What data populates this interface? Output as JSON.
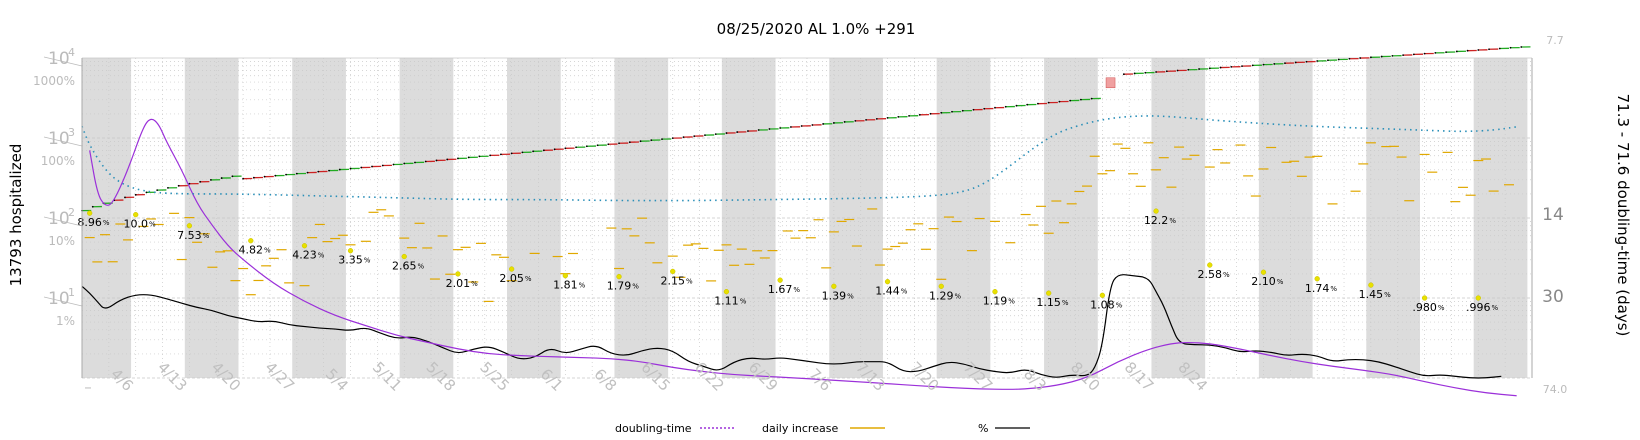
{
  "chart_data": {
    "type": "line",
    "title": "08/25/2020 AL 1.0% +291",
    "ylabel_left": "13793 hospitalized",
    "ylabel_right": "71.3 - 71.6 doubling-time (days)",
    "yscale_left": "log",
    "yticks_left": [
      "10",
      "10",
      "10",
      "10"
    ],
    "yticks_left_exp": [
      "1",
      "2",
      "3",
      "4"
    ],
    "pct_ticks": [
      "1%",
      "10%",
      "100%",
      "1000%"
    ],
    "yticks_right": [
      "7.7",
      "14",
      "30",
      "74.0"
    ],
    "x_ticks": [
      "4/6",
      "4/13",
      "4/20",
      "4/27",
      "5/4",
      "5/11",
      "5/18",
      "5/25",
      "6/1",
      "6/8",
      "6/15",
      "6/22",
      "6/29",
      "7/6",
      "7/13",
      "7/20",
      "7/27",
      "8/3",
      "8/10",
      "8/17",
      "8/24"
    ],
    "x_start_tick": "–",
    "grid": true,
    "legend_position": "bottom",
    "legend": [
      {
        "label": "doubling-time",
        "style": "dotted",
        "color": "#9b30d9"
      },
      {
        "label": "daily increase",
        "style": "solid",
        "color": "#e0a800"
      },
      {
        "label": "%",
        "style": "solid",
        "color": "#000000"
      }
    ],
    "pct_annotations": [
      {
        "day": 1,
        "text": "8.96",
        "pct": 11.5
      },
      {
        "day": 7,
        "text": "10.0",
        "pct": 11.0
      },
      {
        "day": 14,
        "text": "7.53",
        "pct": 8.0
      },
      {
        "day": 22,
        "text": "4.82",
        "pct": 5.2
      },
      {
        "day": 29,
        "text": "4.23",
        "pct": 4.5
      },
      {
        "day": 35,
        "text": "3.35",
        "pct": 3.9
      },
      {
        "day": 42,
        "text": "2.65",
        "pct": 3.3
      },
      {
        "day": 49,
        "text": "2.01",
        "pct": 2.0
      },
      {
        "day": 56,
        "text": "2.05",
        "pct": 2.3
      },
      {
        "day": 63,
        "text": "1.81",
        "pct": 1.9
      },
      {
        "day": 70,
        "text": "1.79",
        "pct": 1.85
      },
      {
        "day": 77,
        "text": "2.15",
        "pct": 2.15
      },
      {
        "day": 84,
        "text": "1.11",
        "pct": 1.2
      },
      {
        "day": 91,
        "text": "1.67",
        "pct": 1.67
      },
      {
        "day": 98,
        "text": "1.39",
        "pct": 1.4
      },
      {
        "day": 105,
        "text": "1.44",
        "pct": 1.6
      },
      {
        "day": 112,
        "text": "1.29",
        "pct": 1.4
      },
      {
        "day": 119,
        "text": "1.19",
        "pct": 1.2
      },
      {
        "day": 126,
        "text": "1.15",
        "pct": 1.15
      },
      {
        "day": 133,
        "text": "1.08",
        "pct": 1.08
      },
      {
        "day": 140,
        "text": "12.2",
        "pct": 12.2
      },
      {
        "day": 147,
        "text": "2.58",
        "pct": 2.58
      },
      {
        "day": 154,
        "text": "2.10",
        "pct": 2.1
      },
      {
        "day": 161,
        "text": "1.74",
        "pct": 1.74
      },
      {
        "day": 168,
        "text": "1.45",
        "pct": 1.45
      },
      {
        "day": 175,
        "text": ".980",
        "pct": 1.0
      },
      {
        "day": 182,
        "text": ".996",
        "pct": 1.0
      }
    ],
    "series": [
      {
        "name": "%",
        "color": "#000000",
        "points": [
          [
            0,
            14
          ],
          [
            1,
            11.5
          ],
          [
            2,
            9
          ],
          [
            3,
            7
          ],
          [
            5,
            9.5
          ],
          [
            7,
            11
          ],
          [
            9,
            11
          ],
          [
            11,
            9.8
          ],
          [
            13,
            8.6
          ],
          [
            15,
            7.6
          ],
          [
            17,
            7
          ],
          [
            19,
            6
          ],
          [
            21,
            5.5
          ],
          [
            23,
            5
          ],
          [
            25,
            5.2
          ],
          [
            27,
            4.6
          ],
          [
            29,
            4.4
          ],
          [
            31,
            4.2
          ],
          [
            33,
            4.1
          ],
          [
            35,
            3.9
          ],
          [
            37,
            4.3
          ],
          [
            39,
            3.6
          ],
          [
            41,
            3.1
          ],
          [
            43,
            3.3
          ],
          [
            45,
            2.9
          ],
          [
            47,
            2.4
          ],
          [
            49,
            2.0
          ],
          [
            51,
            2.3
          ],
          [
            53,
            2.5
          ],
          [
            55,
            2.1
          ],
          [
            57,
            1.7
          ],
          [
            59,
            1.8
          ],
          [
            61,
            2.4
          ],
          [
            63,
            2.0
          ],
          [
            65,
            2.3
          ],
          [
            67,
            2.6
          ],
          [
            69,
            2.0
          ],
          [
            71,
            1.9
          ],
          [
            73,
            2.2
          ],
          [
            75,
            2.4
          ],
          [
            77,
            2.2
          ],
          [
            79,
            1.6
          ],
          [
            81,
            1.4
          ],
          [
            83,
            1.2
          ],
          [
            85,
            1.6
          ],
          [
            87,
            1.8
          ],
          [
            89,
            1.7
          ],
          [
            91,
            1.8
          ],
          [
            93,
            1.7
          ],
          [
            95,
            1.6
          ],
          [
            97,
            1.5
          ],
          [
            99,
            1.5
          ],
          [
            101,
            1.6
          ],
          [
            103,
            1.6
          ],
          [
            105,
            1.6
          ],
          [
            107,
            1.2
          ],
          [
            109,
            1.2
          ],
          [
            111,
            1.4
          ],
          [
            113,
            1.6
          ],
          [
            115,
            1.5
          ],
          [
            117,
            1.3
          ],
          [
            119,
            1.2
          ],
          [
            121,
            1.15
          ],
          [
            123,
            1.3
          ],
          [
            125,
            1.1
          ],
          [
            127,
            1.0
          ],
          [
            129,
            1.1
          ],
          [
            131,
            1.05
          ],
          [
            132,
            1.3
          ],
          [
            133,
            2.5
          ],
          [
            134,
            14
          ],
          [
            135,
            20
          ],
          [
            137,
            19
          ],
          [
            139,
            18
          ],
          [
            140,
            12
          ],
          [
            141,
            8
          ],
          [
            142,
            4.5
          ],
          [
            143,
            2.7
          ],
          [
            145,
            2.6
          ],
          [
            147,
            2.6
          ],
          [
            149,
            2.4
          ],
          [
            151,
            2.1
          ],
          [
            153,
            2.2
          ],
          [
            155,
            2.1
          ],
          [
            157,
            1.9
          ],
          [
            159,
            2.0
          ],
          [
            161,
            1.9
          ],
          [
            163,
            1.6
          ],
          [
            165,
            1.7
          ],
          [
            167,
            1.7
          ],
          [
            169,
            1.6
          ],
          [
            171,
            1.4
          ],
          [
            173,
            1.2
          ],
          [
            175,
            1.05
          ],
          [
            177,
            1.1
          ],
          [
            179,
            1.05
          ],
          [
            181,
            1.0
          ],
          [
            183,
            1.0
          ],
          [
            185,
            1.05
          ]
        ]
      },
      {
        "name": "doubling-time",
        "color": "#9b30d9",
        "points": [
          [
            1,
            700
          ],
          [
            2,
            200
          ],
          [
            3,
            140
          ],
          [
            4,
            150
          ],
          [
            6,
            400
          ],
          [
            8,
            1400
          ],
          [
            9,
            1800
          ],
          [
            10,
            1500
          ],
          [
            11,
            900
          ],
          [
            13,
            400
          ],
          [
            15,
            150
          ],
          [
            17,
            80
          ],
          [
            19,
            45
          ],
          [
            21,
            30
          ],
          [
            25,
            15
          ],
          [
            29,
            9
          ],
          [
            33,
            6
          ],
          [
            37,
            4.5
          ],
          [
            41,
            3.4
          ],
          [
            45,
            2.8
          ],
          [
            49,
            2.3
          ],
          [
            53,
            2.0
          ],
          [
            57,
            1.9
          ],
          [
            61,
            1.85
          ],
          [
            65,
            1.8
          ],
          [
            69,
            1.75
          ],
          [
            73,
            1.6
          ],
          [
            77,
            1.35
          ],
          [
            81,
            1.2
          ],
          [
            85,
            1.1
          ],
          [
            89,
            1.05
          ],
          [
            93,
            1.0
          ],
          [
            97,
            0.95
          ],
          [
            101,
            0.9
          ],
          [
            105,
            0.85
          ],
          [
            109,
            0.8
          ],
          [
            113,
            0.76
          ],
          [
            117,
            0.73
          ],
          [
            121,
            0.72
          ],
          [
            123,
            0.73
          ],
          [
            127,
            0.8
          ],
          [
            131,
            1.0
          ],
          [
            135,
            1.6
          ],
          [
            139,
            2.3
          ],
          [
            142,
            2.7
          ],
          [
            144,
            2.8
          ],
          [
            147,
            2.7
          ],
          [
            151,
            2.3
          ],
          [
            155,
            1.9
          ],
          [
            159,
            1.6
          ],
          [
            163,
            1.4
          ],
          [
            167,
            1.25
          ],
          [
            171,
            1.1
          ],
          [
            175,
            0.9
          ],
          [
            179,
            0.75
          ],
          [
            183,
            0.65
          ],
          [
            187,
            0.6
          ]
        ]
      },
      {
        "name": "doubling-time-dotted",
        "color": "#2a8fb8",
        "points": [
          [
            0,
            1400
          ],
          [
            1,
            800
          ],
          [
            3,
            400
          ],
          [
            5,
            270
          ],
          [
            8,
            215
          ],
          [
            12,
            200
          ],
          [
            20,
            200
          ],
          [
            30,
            190
          ],
          [
            40,
            180
          ],
          [
            50,
            170
          ],
          [
            60,
            170
          ],
          [
            70,
            165
          ],
          [
            80,
            165
          ],
          [
            90,
            170
          ],
          [
            100,
            175
          ],
          [
            110,
            185
          ],
          [
            115,
            210
          ],
          [
            118,
            280
          ],
          [
            121,
            450
          ],
          [
            124,
            750
          ],
          [
            127,
            1150
          ],
          [
            130,
            1450
          ],
          [
            133,
            1700
          ],
          [
            136,
            1850
          ],
          [
            139,
            1900
          ],
          [
            142,
            1850
          ],
          [
            145,
            1750
          ],
          [
            150,
            1600
          ],
          [
            160,
            1400
          ],
          [
            170,
            1300
          ],
          [
            175,
            1250
          ],
          [
            180,
            1200
          ],
          [
            184,
            1250
          ],
          [
            187,
            1380
          ]
        ]
      }
    ]
  }
}
